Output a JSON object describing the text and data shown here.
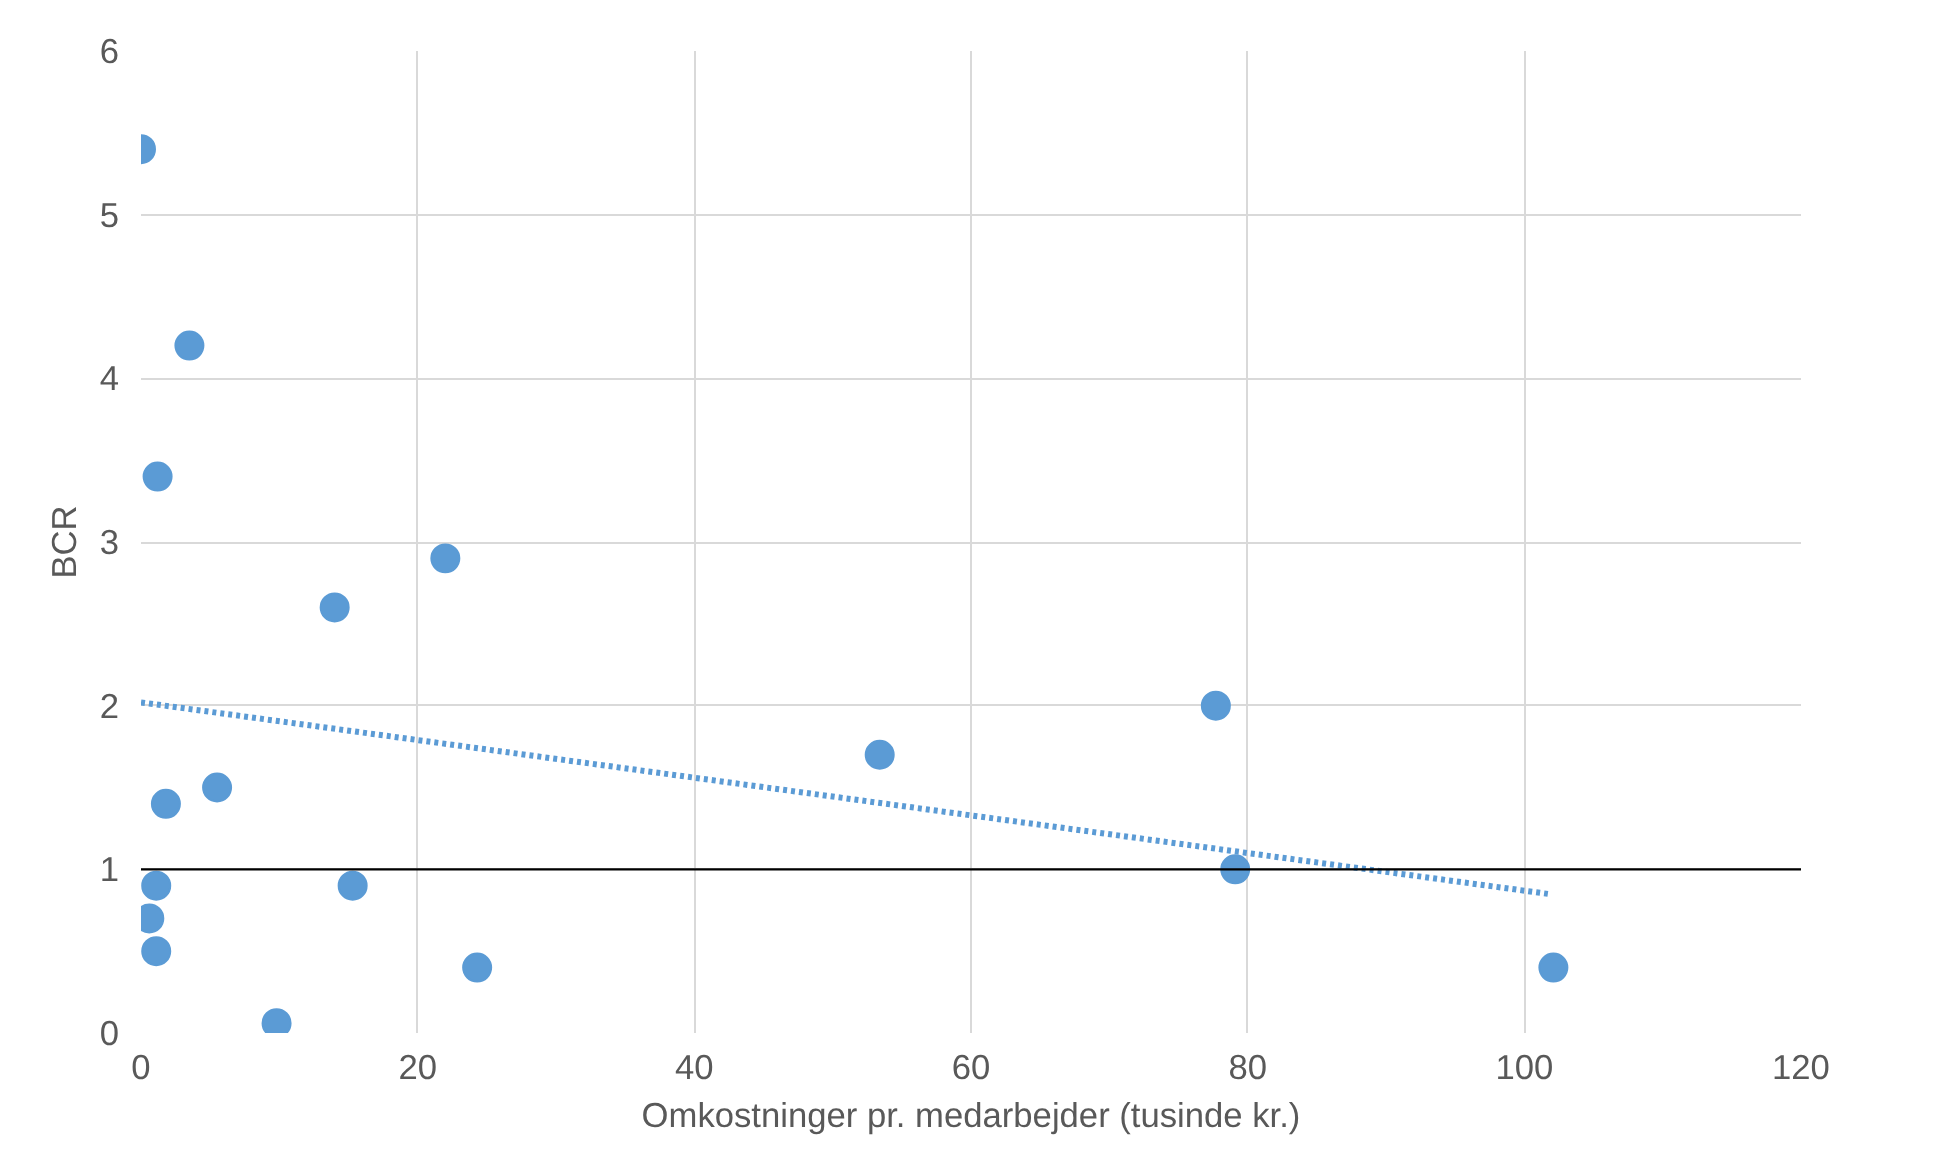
{
  "chart_data": {
    "type": "scatter",
    "xlabel": "Omkostninger pr. medarbejder (tusinde kr.)",
    "ylabel": "BCR",
    "xlim": [
      0,
      120
    ],
    "xticks": [
      0,
      20,
      40,
      60,
      80,
      100,
      120
    ],
    "ylim": [
      0,
      6
    ],
    "yticks": [
      0,
      1,
      2,
      3,
      4,
      5,
      6
    ],
    "grid": true,
    "marker": "circle",
    "series": [
      {
        "color": "#5b9bd5",
        "x": [
          0,
          3.5,
          1.2,
          22,
          14,
          5.5,
          1.8,
          1.1,
          0.6,
          1.1,
          9.8,
          15.3,
          24.3,
          53.4,
          77.7,
          79.1,
          102.1
        ],
        "values": [
          5.4,
          4.2,
          3.4,
          2.9,
          2.6,
          1.5,
          1.4,
          0.9,
          0.7,
          0.5,
          0.06,
          0.9,
          0.4,
          1.7,
          2.0,
          1.0,
          0.4
        ]
      },
      {
        "type": "line",
        "color": "#5b9bd5",
        "line_style": "dotted",
        "marker": "none",
        "x": [
          0,
          101.7
        ],
        "values": [
          2.02,
          0.85
        ]
      }
    ],
    "ref_lines": [
      {
        "axis": "y",
        "value": 1,
        "color": "#000000"
      }
    ]
  }
}
